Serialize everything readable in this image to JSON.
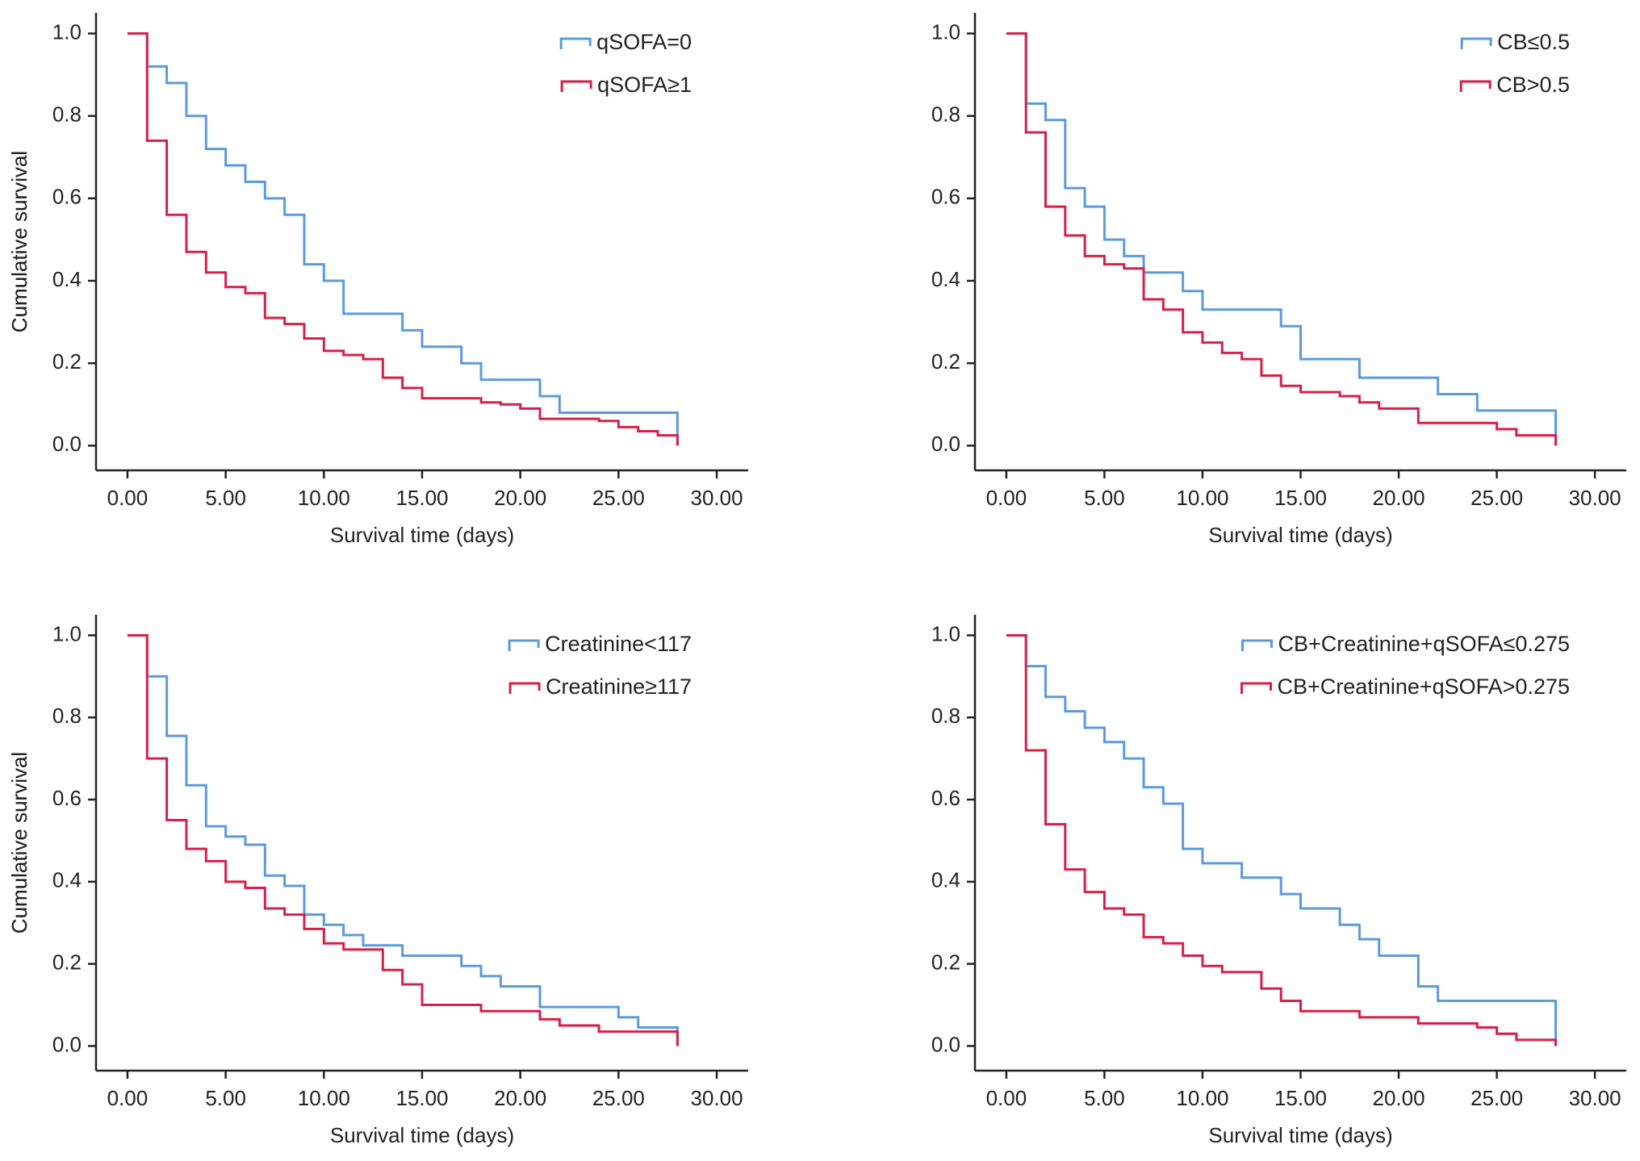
{
  "chart_data": [
    {
      "type": "line",
      "step": true,
      "xlabel": "Survival time (days)",
      "ylabel": "Cumulative survival",
      "legend": "upper right",
      "x": [
        0,
        1,
        2,
        3,
        4,
        5,
        6,
        7,
        8,
        9,
        10,
        11,
        12,
        13,
        14,
        15,
        16,
        17,
        18,
        19,
        20,
        21,
        22,
        23,
        24,
        25,
        26,
        27,
        28
      ],
      "series": [
        {
          "name": "qSOFA=0",
          "color": "#5b9bdc",
          "values": [
            1,
            0.92,
            0.88,
            0.8,
            0.72,
            0.68,
            0.64,
            0.6,
            0.56,
            0.44,
            0.4,
            0.32,
            0.32,
            0.32,
            0.28,
            0.24,
            0.24,
            0.2,
            0.16,
            0.16,
            0.16,
            0.12,
            0.08,
            0.08,
            0.08,
            0.08,
            0.08,
            0.08,
            0
          ]
        },
        {
          "name": "qSOFA≥1",
          "color": "#d6204a",
          "values": [
            1,
            0.74,
            0.56,
            0.47,
            0.42,
            0.385,
            0.37,
            0.31,
            0.295,
            0.26,
            0.23,
            0.22,
            0.21,
            0.165,
            0.14,
            0.115,
            0.115,
            0.115,
            0.105,
            0.1,
            0.09,
            0.065,
            0.065,
            0.065,
            0.06,
            0.045,
            0.035,
            0.025,
            0
          ]
        }
      ],
      "xlim": [
        -1.6,
        31.6
      ],
      "ylim": [
        -0.06,
        1.05
      ],
      "xticks": [
        {
          "value": 0,
          "label": "0.00"
        },
        {
          "value": 5,
          "label": "5.00"
        },
        {
          "value": 10,
          "label": "10.00"
        },
        {
          "value": 15,
          "label": "15.00"
        },
        {
          "value": 20,
          "label": "20.00"
        },
        {
          "value": 25,
          "label": "25.00"
        },
        {
          "value": 30,
          "label": "30.00"
        }
      ],
      "yticks": [
        {
          "value": 0,
          "label": "0.0"
        },
        0.2,
        0.4,
        0.6,
        0.8,
        {
          "value": 1,
          "label": "1.0"
        }
      ]
    },
    {
      "type": "line",
      "step": true,
      "xlabel": "Survival time (days)",
      "ylabel": "Cumulative survival",
      "legend": "upper right",
      "x": [
        0,
        1,
        2,
        3,
        4,
        5,
        6,
        7,
        8,
        9,
        10,
        11,
        12,
        13,
        14,
        15,
        16,
        17,
        18,
        19,
        20,
        21,
        22,
        23,
        24,
        25,
        26,
        27,
        28
      ],
      "series": [
        {
          "name": "CB≤0.5",
          "color": "#5b9bdc",
          "values": [
            1,
            0.83,
            0.79,
            0.625,
            0.58,
            0.5,
            0.46,
            0.42,
            0.42,
            0.375,
            0.33,
            0.33,
            0.33,
            0.33,
            0.29,
            0.21,
            0.21,
            0.21,
            0.165,
            0.165,
            0.165,
            0.165,
            0.125,
            0.125,
            0.085,
            0.085,
            0.085,
            0.085,
            0
          ]
        },
        {
          "name": "CB>0.5",
          "color": "#d6204a",
          "values": [
            1,
            0.76,
            0.58,
            0.51,
            0.46,
            0.44,
            0.43,
            0.355,
            0.33,
            0.275,
            0.25,
            0.225,
            0.21,
            0.17,
            0.145,
            0.13,
            0.13,
            0.12,
            0.105,
            0.09,
            0.09,
            0.055,
            0.055,
            0.055,
            0.055,
            0.04,
            0.025,
            0.025,
            0
          ]
        }
      ],
      "xlim": [
        -1.6,
        31.6
      ],
      "ylim": [
        -0.06,
        1.05
      ],
      "xticks": [
        {
          "value": 0,
          "label": "0.00"
        },
        {
          "value": 5,
          "label": "5.00"
        },
        {
          "value": 10,
          "label": "10.00"
        },
        {
          "value": 15,
          "label": "15.00"
        },
        {
          "value": 20,
          "label": "20.00"
        },
        {
          "value": 25,
          "label": "25.00"
        },
        {
          "value": 30,
          "label": "30.00"
        }
      ],
      "yticks": [
        {
          "value": 0,
          "label": "0.0"
        },
        0.2,
        0.4,
        0.6,
        0.8,
        {
          "value": 1,
          "label": "1.0"
        }
      ]
    },
    {
      "type": "line",
      "step": true,
      "xlabel": "Survival time (days)",
      "ylabel": "Cumulative survival",
      "legend": "upper right",
      "x": [
        0,
        1,
        2,
        3,
        4,
        5,
        6,
        7,
        8,
        9,
        10,
        11,
        12,
        13,
        14,
        15,
        16,
        17,
        18,
        19,
        20,
        21,
        22,
        23,
        24,
        25,
        26,
        27,
        28
      ],
      "series": [
        {
          "name": "Creatinine<117",
          "color": "#5b9bdc",
          "values": [
            1,
            0.9,
            0.755,
            0.635,
            0.535,
            0.51,
            0.49,
            0.415,
            0.39,
            0.32,
            0.295,
            0.27,
            0.245,
            0.245,
            0.22,
            0.22,
            0.22,
            0.195,
            0.17,
            0.145,
            0.145,
            0.095,
            0.095,
            0.095,
            0.095,
            0.07,
            0.045,
            0.045,
            0
          ]
        },
        {
          "name": "Creatinine≥117",
          "color": "#d6204a",
          "values": [
            1,
            0.7,
            0.55,
            0.48,
            0.45,
            0.4,
            0.385,
            0.335,
            0.32,
            0.285,
            0.25,
            0.235,
            0.235,
            0.185,
            0.15,
            0.1,
            0.1,
            0.1,
            0.085,
            0.085,
            0.085,
            0.065,
            0.05,
            0.05,
            0.035,
            0.035,
            0.035,
            0.035,
            0
          ]
        }
      ],
      "xlim": [
        -1.6,
        31.6
      ],
      "ylim": [
        -0.06,
        1.05
      ],
      "xticks": [
        {
          "value": 0,
          "label": "0.00"
        },
        {
          "value": 5,
          "label": "5.00"
        },
        {
          "value": 10,
          "label": "10.00"
        },
        {
          "value": 15,
          "label": "15.00"
        },
        {
          "value": 20,
          "label": "20.00"
        },
        {
          "value": 25,
          "label": "25.00"
        },
        {
          "value": 30,
          "label": "30.00"
        }
      ],
      "yticks": [
        {
          "value": 0,
          "label": "0.0"
        },
        0.2,
        0.4,
        0.6,
        0.8,
        {
          "value": 1,
          "label": "1.0"
        }
      ]
    },
    {
      "type": "line",
      "step": true,
      "xlabel": "Survival time (days)",
      "ylabel": "Cumulative survival",
      "legend": "upper right",
      "x": [
        0,
        1,
        2,
        3,
        4,
        5,
        6,
        7,
        8,
        9,
        10,
        11,
        12,
        13,
        14,
        15,
        16,
        17,
        18,
        19,
        20,
        21,
        22,
        23,
        24,
        25,
        26,
        27,
        28
      ],
      "series": [
        {
          "name": "CB+Creatinine+qSOFA≤0.275",
          "color": "#5b9bdc",
          "values": [
            1,
            0.925,
            0.85,
            0.815,
            0.775,
            0.74,
            0.7,
            0.63,
            0.59,
            0.48,
            0.445,
            0.445,
            0.41,
            0.41,
            0.37,
            0.335,
            0.335,
            0.295,
            0.26,
            0.22,
            0.22,
            0.145,
            0.11,
            0.11,
            0.11,
            0.11,
            0.11,
            0.11,
            0
          ]
        },
        {
          "name": "CB+Creatinine+qSOFA>0.275",
          "color": "#d6204a",
          "values": [
            1,
            0.72,
            0.54,
            0.43,
            0.375,
            0.335,
            0.32,
            0.265,
            0.25,
            0.22,
            0.195,
            0.18,
            0.18,
            0.14,
            0.11,
            0.085,
            0.085,
            0.085,
            0.07,
            0.07,
            0.07,
            0.055,
            0.055,
            0.055,
            0.045,
            0.03,
            0.015,
            0.015,
            0
          ]
        }
      ],
      "xlim": [
        -1.6,
        31.6
      ],
      "ylim": [
        -0.06,
        1.05
      ],
      "xticks": [
        {
          "value": 0,
          "label": "0.00"
        },
        {
          "value": 5,
          "label": "5.00"
        },
        {
          "value": 10,
          "label": "10.00"
        },
        {
          "value": 15,
          "label": "15.00"
        },
        {
          "value": 20,
          "label": "20.00"
        },
        {
          "value": 25,
          "label": "25.00"
        },
        {
          "value": 30,
          "label": "30.00"
        }
      ],
      "yticks": [
        {
          "value": 0,
          "label": "0.0"
        },
        0.2,
        0.4,
        0.6,
        0.8,
        {
          "value": 1,
          "label": "1.0"
        }
      ]
    }
  ]
}
